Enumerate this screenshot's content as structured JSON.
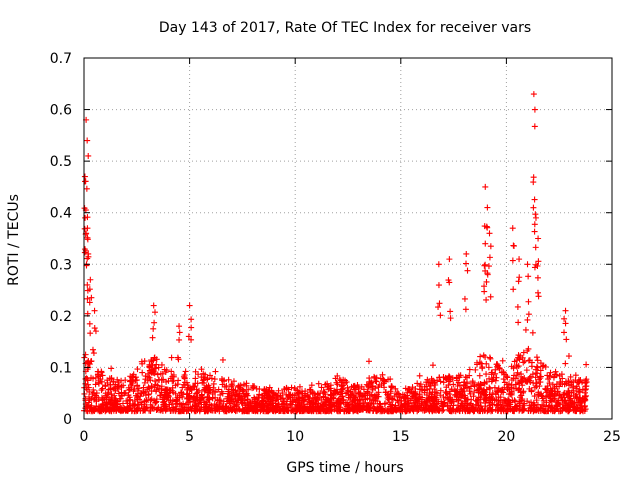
{
  "chart_data": {
    "type": "scatter",
    "title": "Day 143 of 2017, Rate Of TEC Index for receiver vars",
    "xlabel": "GPS time / hours",
    "ylabel": "ROTI / TECUs",
    "xlim": [
      0,
      25
    ],
    "ylim": [
      0,
      0.7
    ],
    "grid": true,
    "marker": "+",
    "color": "#ff0000",
    "x_ticks": [
      {
        "value": 0,
        "label": "0"
      },
      {
        "value": 5,
        "label": "5"
      },
      {
        "value": 10,
        "label": "10"
      },
      {
        "value": 15,
        "label": "15"
      },
      {
        "value": 20,
        "label": "20"
      },
      {
        "value": 25,
        "label": "25"
      }
    ],
    "y_ticks": [
      {
        "value": 0,
        "label": "0"
      },
      {
        "value": 0.1,
        "label": "0.1"
      },
      {
        "value": 0.2,
        "label": "0.2"
      },
      {
        "value": 0.3,
        "label": "0.3"
      },
      {
        "value": 0.4,
        "label": "0.4"
      },
      {
        "value": 0.5,
        "label": "0.5"
      },
      {
        "value": 0.6,
        "label": "0.6"
      },
      {
        "value": 0.7,
        "label": "0.7"
      }
    ],
    "series": [
      {
        "name": "ROTI",
        "x_range": [
          0,
          23.8
        ],
        "baseline_envelope": [
          [
            0.0,
            0.12
          ],
          [
            0.5,
            0.09
          ],
          [
            1.0,
            0.07
          ],
          [
            2.0,
            0.06
          ],
          [
            3.0,
            0.12
          ],
          [
            4.0,
            0.08
          ],
          [
            5.0,
            0.08
          ],
          [
            6.0,
            0.07
          ],
          [
            7.0,
            0.06
          ],
          [
            8.0,
            0.05
          ],
          [
            9.0,
            0.04
          ],
          [
            10.0,
            0.05
          ],
          [
            11.0,
            0.04
          ],
          [
            12.0,
            0.07
          ],
          [
            13.0,
            0.05
          ],
          [
            14.0,
            0.08
          ],
          [
            15.0,
            0.04
          ],
          [
            16.0,
            0.06
          ],
          [
            17.0,
            0.07
          ],
          [
            18.0,
            0.07
          ],
          [
            19.0,
            0.12
          ],
          [
            20.0,
            0.07
          ],
          [
            21.0,
            0.14
          ],
          [
            22.0,
            0.08
          ],
          [
            23.0,
            0.07
          ],
          [
            23.8,
            0.07
          ]
        ],
        "peaks": [
          {
            "x": 0.1,
            "y": 0.58
          },
          {
            "x": 0.15,
            "y": 0.54
          },
          {
            "x": 0.2,
            "y": 0.51
          },
          {
            "x": 0.05,
            "y": 0.39
          },
          {
            "x": 0.1,
            "y": 0.36
          },
          {
            "x": 0.2,
            "y": 0.32
          },
          {
            "x": 0.3,
            "y": 0.27
          },
          {
            "x": 0.5,
            "y": 0.21
          },
          {
            "x": 3.3,
            "y": 0.22
          },
          {
            "x": 5.0,
            "y": 0.22
          },
          {
            "x": 4.5,
            "y": 0.18
          },
          {
            "x": 16.8,
            "y": 0.3
          },
          {
            "x": 17.3,
            "y": 0.31
          },
          {
            "x": 18.1,
            "y": 0.32
          },
          {
            "x": 19.0,
            "y": 0.45
          },
          {
            "x": 19.1,
            "y": 0.41
          },
          {
            "x": 19.2,
            "y": 0.36
          },
          {
            "x": 19.0,
            "y": 0.34
          },
          {
            "x": 20.3,
            "y": 0.37
          },
          {
            "x": 20.6,
            "y": 0.31
          },
          {
            "x": 21.3,
            "y": 0.63
          },
          {
            "x": 21.35,
            "y": 0.6
          },
          {
            "x": 21.4,
            "y": 0.39
          },
          {
            "x": 21.5,
            "y": 0.35
          },
          {
            "x": 21.0,
            "y": 0.3
          },
          {
            "x": 22.8,
            "y": 0.21
          }
        ]
      }
    ]
  }
}
